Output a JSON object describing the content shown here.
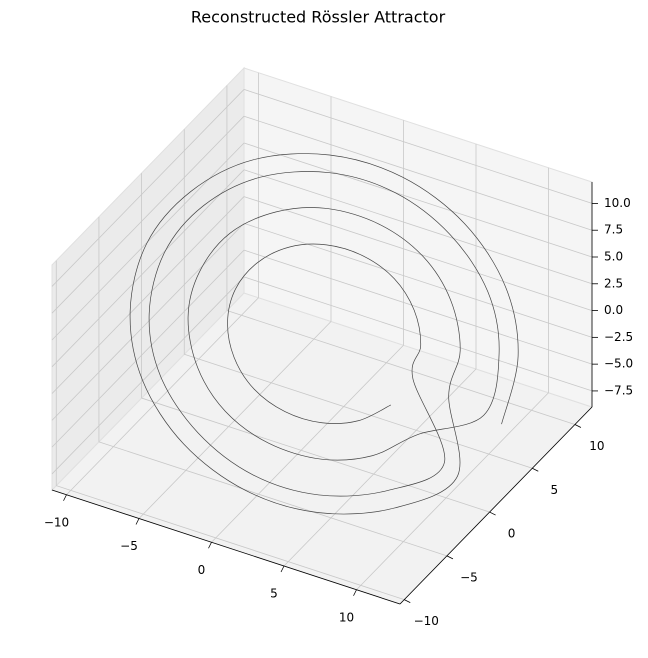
{
  "chart_data": {
    "type": "line3d",
    "title": "Reconstructed Rössler Attractor",
    "color": "#444444",
    "x": [
      11,
      10.2,
      8.1,
      4.8,
      1,
      -2.8,
      -6.1,
      -8.2,
      -9,
      -8.2,
      -6.1,
      -2.8,
      1,
      4.8,
      8.1,
      10.2,
      8,
      7.5,
      5.9,
      3.7,
      1,
      -1.7,
      -3.9,
      -5.5,
      -6,
      -5.5,
      -3.9,
      -1.7,
      1,
      3.7,
      5.9,
      7.5,
      10,
      9.3,
      7.4,
      4.4,
      1,
      -2.4,
      -5.4,
      -7.3,
      -8,
      -7.3,
      -5.4,
      -2.4,
      1,
      4.4,
      7.4,
      9.3,
      6,
      5.6,
      4.5,
      2.9,
      1,
      -0.9,
      -2.5,
      -3.6,
      -4,
      -3.6,
      -2.5,
      -0.9,
      1,
      2.9,
      4.5,
      5.6
    ],
    "y": [
      4.8,
      8.1,
      10.2,
      11,
      10.2,
      8.1,
      4.8,
      1,
      -2.8,
      -6.1,
      -8.2,
      -9,
      -8.2,
      -6.1,
      -2.8,
      1,
      3.7,
      5.9,
      7.5,
      8,
      7.5,
      5.9,
      3.7,
      1,
      -1.7,
      -3.9,
      -5.5,
      -6,
      -5.5,
      -3.9,
      -1.7,
      1,
      4.4,
      7.4,
      9.3,
      10,
      9.3,
      7.4,
      4.4,
      1,
      -2.4,
      -5.4,
      -7.3,
      -8,
      -7.3,
      -5.4,
      -2.4,
      1,
      2.9,
      4.5,
      5.6,
      6,
      5.6,
      4.5,
      2.9,
      1,
      -0.9,
      -2.5,
      -3.6,
      -4,
      -3.6,
      -2.5,
      -0.9,
      1
    ],
    "z": [
      -5.6,
      -2.3,
      1.5,
      5.3,
      8.6,
      10.7,
      11.5,
      10.7,
      8.6,
      5.3,
      1.5,
      -2.3,
      -5.6,
      -7.7,
      -8.5,
      -7.7,
      -3.4,
      -1.2,
      1.5,
      4.2,
      6.4,
      8,
      8.5,
      8,
      6.4,
      4.2,
      1.5,
      -1.2,
      -3.4,
      -5,
      -5.5,
      -5,
      -4.9,
      -1.9,
      1.5,
      4.9,
      7.9,
      9.8,
      10.5,
      9.8,
      7.9,
      4.9,
      1.5,
      -1.9,
      -4.9,
      -6.8,
      -7.5,
      -6.8,
      -2,
      -0.4,
      1.5,
      3.4,
      5,
      6.1,
      6.5,
      6.1,
      5,
      3.4,
      1.5,
      -0.4,
      -2,
      -3.1,
      -3.5,
      -3.1
    ],
    "xlim": [
      -11,
      13
    ],
    "ylim": [
      -10.5,
      12
    ],
    "zlim": [
      -9,
      12
    ],
    "xticks": [
      {
        "value": -10,
        "label": "−10"
      },
      {
        "value": -5,
        "label": "−5"
      },
      0,
      5,
      10
    ],
    "yticks": [
      {
        "value": -10,
        "label": "−10"
      },
      {
        "value": -5,
        "label": "−5"
      },
      0,
      5,
      10
    ],
    "zticks": [
      {
        "value": -7.5,
        "label": "−7.5"
      },
      {
        "value": -5,
        "label": "−5.0"
      },
      {
        "value": -2.5,
        "label": "−2.5"
      },
      {
        "value": 0,
        "label": "0.0"
      },
      2.5,
      {
        "value": 5,
        "label": "5.0"
      },
      7.5,
      {
        "value": 10,
        "label": "10.0"
      }
    ],
    "grid": true
  }
}
